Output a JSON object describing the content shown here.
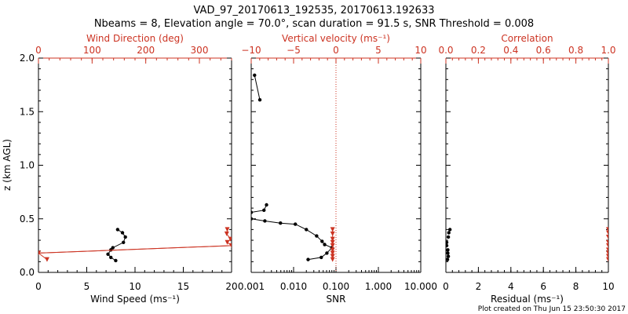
{
  "header": {
    "line1": "VAD_97_20170613_192535, 20170613.192633",
    "line2": "Nbeams = 8, Elevation angle = 70.0°, scan duration = 91.5 s, SNR Threshold = 0.008"
  },
  "footer": {
    "created": "Plot created on Thu Jun 15 23:50:30 2017"
  },
  "colors": {
    "axis": "#000000",
    "accent": "#cc3322",
    "background": "#ffffff"
  },
  "chart_data": [
    {
      "type": "line",
      "panel": "wind",
      "ylabel": "z (km AGL)",
      "ylim": [
        0,
        2
      ],
      "yticks": [
        "0.0",
        "0.5",
        "1.0",
        "1.5",
        "2.0"
      ],
      "xlabel_bottom": "Wind Speed (ms⁻¹)",
      "xlim_bottom": [
        0,
        20
      ],
      "xticks_bottom": [
        "0",
        "5",
        "10",
        "15",
        "20"
      ],
      "xlabel_top": "Wind Direction (deg)",
      "xlim_top": [
        0,
        360
      ],
      "xticks_top": [
        "0",
        "100",
        "200",
        "300"
      ],
      "series": [
        {
          "axis": "bottom",
          "color": "#000000",
          "marker": "circle",
          "points": [
            [
              8.0,
              0.11
            ],
            [
              7.5,
              0.14
            ],
            [
              7.2,
              0.17
            ],
            [
              7.5,
              0.21
            ],
            [
              7.7,
              0.23
            ],
            [
              8.8,
              0.28
            ],
            [
              9.0,
              0.33
            ],
            [
              8.7,
              0.37
            ],
            [
              8.2,
              0.4
            ]
          ]
        },
        {
          "axis": "top",
          "color": "#cc3322",
          "marker": "triangle",
          "points": [
            [
              352,
              0.4
            ],
            [
              351,
              0.36
            ],
            [
              358,
              0.31
            ],
            [
              352,
              0.28
            ],
            [
              360,
              0.25
            ],
            [
              0,
              0.18
            ],
            [
              16,
              0.12
            ]
          ]
        },
        {
          "axis": "top",
          "color": "#cc3322",
          "marker": "none",
          "points": [
            [
              0,
              0.18
            ],
            [
              360,
              0.25
            ]
          ]
        }
      ]
    },
    {
      "type": "line",
      "panel": "snr",
      "ylim": [
        0,
        2
      ],
      "xscale": "log",
      "xlabel_bottom": "SNR",
      "xlim_bottom": [
        0.001,
        10
      ],
      "xticks_bottom": [
        "0.001",
        "0.010",
        "0.100",
        "1.000",
        "10.000"
      ],
      "xlabel_top": "Vertical velocity (ms⁻¹)",
      "xlim_top": [
        -10,
        10
      ],
      "xticks_top": [
        "−10",
        "−5",
        "0",
        "5",
        "10"
      ],
      "zero_line_top": 0,
      "series": [
        {
          "axis": "bottom",
          "color": "#000000",
          "marker": "circle",
          "name": "snr-lower",
          "points": [
            [
              0.001,
              0.5
            ],
            [
              0.0021,
              0.48
            ],
            [
              0.0049,
              0.46
            ],
            [
              0.011,
              0.45
            ],
            [
              0.02,
              0.4
            ],
            [
              0.035,
              0.34
            ],
            [
              0.047,
              0.29
            ],
            [
              0.054,
              0.26
            ],
            [
              0.08,
              0.23
            ],
            [
              0.061,
              0.18
            ],
            [
              0.045,
              0.14
            ],
            [
              0.022,
              0.12
            ]
          ]
        },
        {
          "axis": "bottom",
          "color": "#000000",
          "marker": "circle",
          "name": "snr-upper",
          "points": [
            [
              0.001,
              0.56
            ],
            [
              0.002,
              0.58
            ],
            [
              0.0023,
              0.63
            ]
          ]
        },
        {
          "axis": "bottom",
          "color": "#000000",
          "marker": "circle",
          "name": "snr-isolated",
          "points": [
            [
              0.0012,
              1.84
            ],
            [
              0.0016,
              1.61
            ]
          ]
        },
        {
          "axis": "top",
          "color": "#cc3322",
          "marker": "triangle",
          "points": [
            [
              -0.4,
              0.4
            ],
            [
              -0.4,
              0.36
            ],
            [
              -0.4,
              0.31
            ],
            [
              -0.4,
              0.28
            ],
            [
              -0.4,
              0.25
            ],
            [
              -0.4,
              0.21
            ],
            [
              -0.4,
              0.18
            ],
            [
              -0.4,
              0.15
            ],
            [
              -0.4,
              0.12
            ]
          ]
        }
      ]
    },
    {
      "type": "scatter",
      "panel": "residual",
      "ylim": [
        0,
        2
      ],
      "xlabel_bottom": "Residual (ms⁻¹)",
      "xlim_bottom": [
        0,
        10
      ],
      "xticks_bottom": [
        "0",
        "2",
        "4",
        "6",
        "8",
        "10"
      ],
      "xlabel_top": "Correlation",
      "xlim_top": [
        0,
        1
      ],
      "xticks_top": [
        "0.0",
        "0.2",
        "0.4",
        "0.6",
        "0.8",
        "1.0"
      ],
      "series": [
        {
          "axis": "bottom",
          "color": "#000000",
          "marker": "circle",
          "points": [
            [
              0.25,
              0.4
            ],
            [
              0.18,
              0.37
            ],
            [
              0.15,
              0.33
            ],
            [
              0.05,
              0.28
            ],
            [
              0.05,
              0.25
            ],
            [
              0.12,
              0.21
            ],
            [
              0.12,
              0.18
            ],
            [
              0.15,
              0.15
            ],
            [
              0.1,
              0.12
            ]
          ]
        },
        {
          "axis": "top",
          "color": "#cc3322",
          "marker": "triangle",
          "points": [
            [
              1,
              0.4
            ],
            [
              1,
              0.37
            ],
            [
              1,
              0.33
            ],
            [
              1,
              0.28
            ],
            [
              1,
              0.25
            ],
            [
              1,
              0.21
            ],
            [
              1,
              0.18
            ],
            [
              1,
              0.15
            ],
            [
              1,
              0.12
            ]
          ]
        }
      ]
    }
  ]
}
